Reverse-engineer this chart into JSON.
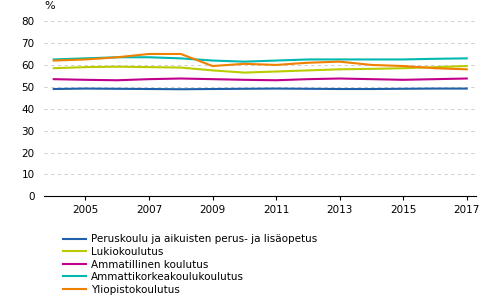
{
  "years": [
    2004,
    2005,
    2006,
    2007,
    2008,
    2009,
    2010,
    2011,
    2012,
    2013,
    2014,
    2015,
    2016,
    2017
  ],
  "series": {
    "Peruskoulu ja aikuisten perus- ja lisäopetus": [
      49.0,
      49.2,
      49.1,
      49.0,
      48.9,
      49.0,
      49.1,
      49.2,
      49.1,
      49.0,
      49.0,
      49.1,
      49.2,
      49.2
    ],
    "Lukiokoulutus": [
      58.5,
      59.0,
      59.2,
      59.0,
      58.8,
      57.5,
      56.5,
      57.0,
      57.5,
      58.0,
      58.2,
      58.5,
      59.0,
      59.5
    ],
    "Ammatillinen koulutus": [
      53.5,
      53.2,
      53.0,
      53.5,
      53.8,
      53.5,
      53.2,
      53.0,
      53.5,
      53.8,
      53.5,
      53.2,
      53.5,
      53.8
    ],
    "Ammattikorkeakoulukoulutus": [
      62.5,
      63.0,
      63.5,
      63.5,
      63.0,
      62.0,
      61.5,
      62.0,
      62.5,
      62.5,
      62.5,
      62.5,
      62.8,
      63.0
    ],
    "Yliopistokoulutus": [
      62.0,
      62.5,
      63.5,
      65.0,
      65.0,
      59.5,
      60.5,
      60.0,
      61.0,
      61.5,
      60.0,
      59.5,
      58.5,
      58.0
    ]
  },
  "colors": {
    "Peruskoulu ja aikuisten perus- ja lisäopetus": "#2060a8",
    "Lukiokoulutus": "#b8cc00",
    "Ammatillinen koulutus": "#c0008c",
    "Ammattikorkeakoulukoulutus": "#00b8b0",
    "Yliopistokoulutus": "#f08000"
  },
  "ylim": [
    0,
    80
  ],
  "yticks": [
    0,
    10,
    20,
    30,
    40,
    50,
    60,
    70,
    80
  ],
  "ylabel": "%",
  "xlim_min": 2004,
  "xlim_max": 2017,
  "xticks": [
    2005,
    2007,
    2009,
    2011,
    2013,
    2015,
    2017
  ],
  "legend_order": [
    "Peruskoulu ja aikuisten perus- ja lisäopetus",
    "Lukiokoulutus",
    "Ammatillinen koulutus",
    "Ammattikorkeakoulukoulutus",
    "Yliopistokoulutus"
  ]
}
